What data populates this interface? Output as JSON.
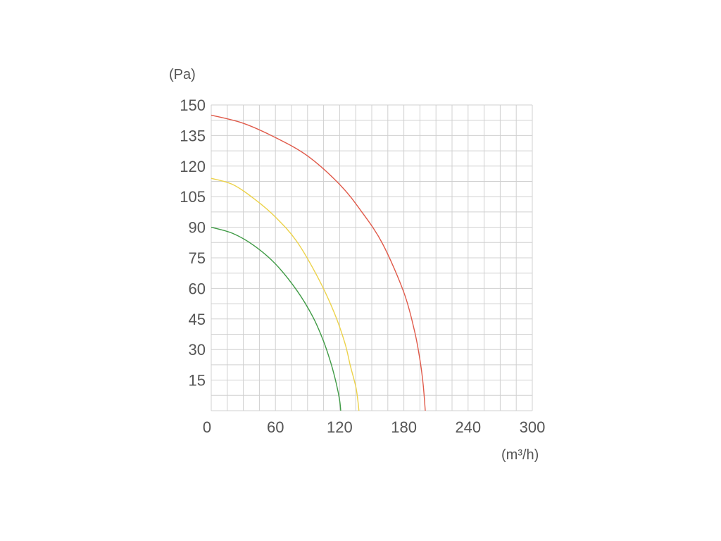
{
  "chart_data": {
    "type": "line",
    "ylabel": "(Pa)",
    "xlabel": "(m³/h)",
    "xlim": [
      0,
      300
    ],
    "ylim": [
      0,
      150
    ],
    "grid": true,
    "x_ticks": [
      "0",
      "60",
      "120",
      "180",
      "240",
      "300"
    ],
    "y_ticks": [
      "15",
      "30",
      "45",
      "60",
      "75",
      "90",
      "105",
      "120",
      "135",
      "150"
    ],
    "series": [
      {
        "color": "#e05a4a",
        "x": [
          0,
          30,
          60,
          90,
          120,
          140,
          160,
          180,
          190,
          195,
          198,
          200
        ],
        "y": [
          145,
          141,
          134,
          125,
          111,
          98,
          82,
          58,
          39,
          25,
          13,
          0
        ]
      },
      {
        "color": "#ecd24a",
        "x": [
          0,
          20,
          40,
          60,
          80,
          100,
          115,
          125,
          130,
          135,
          137,
          138
        ],
        "y": [
          114,
          111,
          104,
          95,
          83,
          65,
          48,
          33,
          22,
          12,
          5,
          0
        ]
      },
      {
        "color": "#3f9a45",
        "x": [
          0,
          20,
          40,
          60,
          80,
          95,
          105,
          112,
          117,
          120,
          121
        ],
        "y": [
          90,
          87,
          81,
          72,
          59,
          46,
          34,
          23,
          13,
          5,
          0
        ]
      }
    ]
  }
}
